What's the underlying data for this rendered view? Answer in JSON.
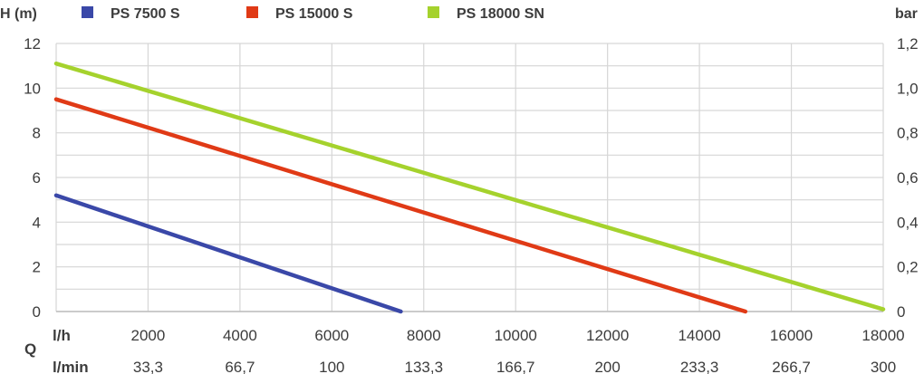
{
  "chart_data": {
    "type": "line",
    "title": "",
    "ylabel_left": "H (m)",
    "ylabel_right": "bar",
    "xlabel": "Q",
    "x_row1_unit": "l/h",
    "x_row2_unit": "l/min",
    "x_ticks_lh": [
      "2000",
      "4000",
      "6000",
      "8000",
      "10000",
      "12000",
      "14000",
      "16000",
      "18000"
    ],
    "x_ticks_lmin": [
      "33,3",
      "66,7",
      "100",
      "133,3",
      "166,7",
      "200",
      "233,3",
      "266,7",
      "300"
    ],
    "y_ticks_left": [
      "0",
      "2",
      "4",
      "6",
      "8",
      "10",
      "12"
    ],
    "y_ticks_right": [
      "0",
      "0,2",
      "0,4",
      "0,6",
      "0,8",
      "1,0",
      "1,2"
    ],
    "xlim": [
      0,
      18000
    ],
    "ylim": [
      0,
      12
    ],
    "grid": true,
    "legend_position": "top",
    "series": [
      {
        "name": "PS 7500 S",
        "color": "#3a48a8",
        "x": [
          0,
          7500
        ],
        "y": [
          5.2,
          0
        ]
      },
      {
        "name": "PS 15000 S",
        "color": "#e03a16",
        "x": [
          0,
          15000
        ],
        "y": [
          9.5,
          0
        ]
      },
      {
        "name": "PS 18000 SN",
        "color": "#a5d22d",
        "x": [
          0,
          18000
        ],
        "y": [
          11.1,
          0.1
        ]
      }
    ]
  }
}
